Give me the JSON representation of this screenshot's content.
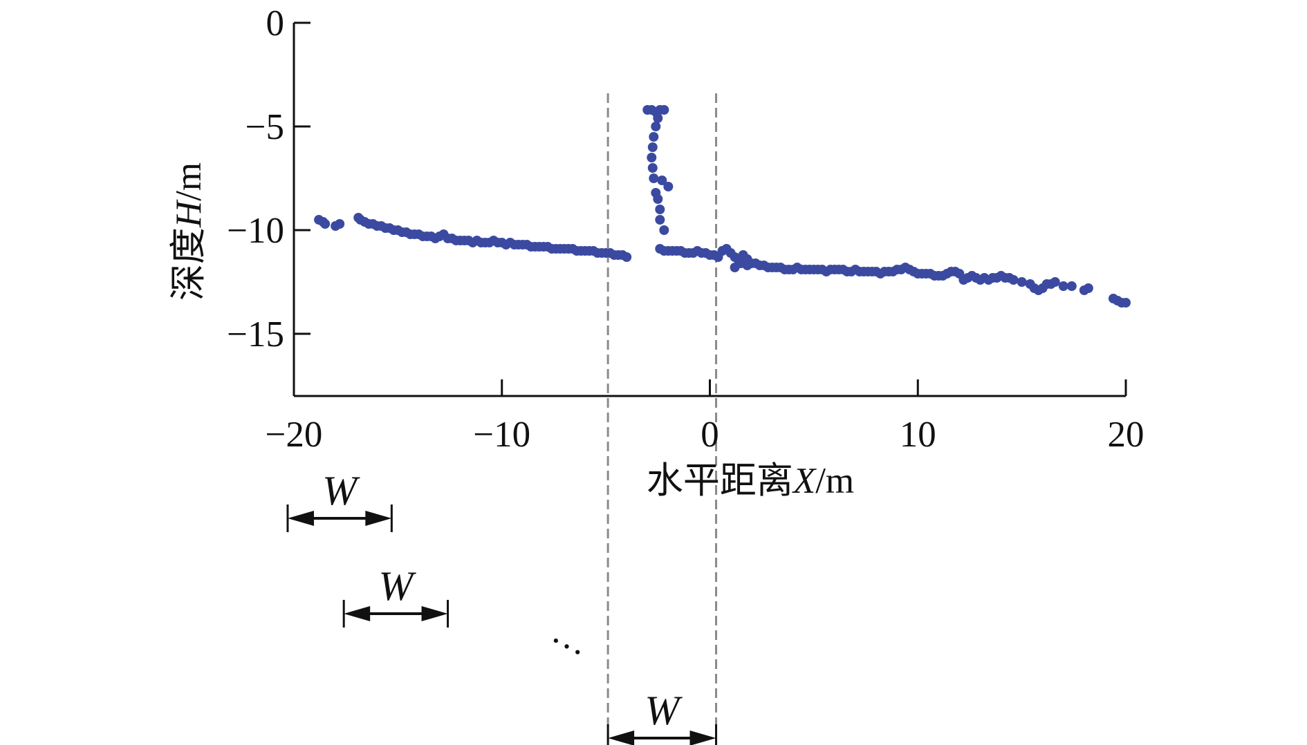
{
  "colors": {
    "points": "#3b4aa0",
    "axis": "#111111",
    "guide": "#8a8a8a"
  },
  "chart_data": {
    "type": "scatter",
    "title": "",
    "xlabel": {
      "prefix": "水平距离",
      "var": "X",
      "unit": "/m"
    },
    "ylabel": {
      "prefix": "深度",
      "var": "H",
      "unit": "/m"
    },
    "xlim": [
      -20,
      20
    ],
    "ylim": [
      -18,
      0
    ],
    "xticks": [
      -20,
      -10,
      0,
      10,
      20
    ],
    "yticks": [
      0,
      -5,
      -10,
      -15
    ],
    "xtick_labels": [
      "−20",
      "−10",
      "0",
      "10",
      "20"
    ],
    "ytick_labels": [
      "0",
      "−5",
      "−10",
      "−15"
    ],
    "grid": false,
    "legend": "none",
    "points": [
      [
        -18.8,
        -9.5
      ],
      [
        -18.6,
        -9.6
      ],
      [
        -18.5,
        -9.7
      ],
      [
        -18.0,
        -9.8
      ],
      [
        -17.8,
        -9.7
      ],
      [
        -16.9,
        -9.4
      ],
      [
        -16.8,
        -9.5
      ],
      [
        -16.6,
        -9.6
      ],
      [
        -16.4,
        -9.7
      ],
      [
        -16.2,
        -9.7
      ],
      [
        -16.0,
        -9.8
      ],
      [
        -15.8,
        -9.8
      ],
      [
        -15.6,
        -9.9
      ],
      [
        -15.4,
        -9.9
      ],
      [
        -15.2,
        -10.0
      ],
      [
        -15.0,
        -10.0
      ],
      [
        -14.8,
        -10.1
      ],
      [
        -14.6,
        -10.1
      ],
      [
        -14.4,
        -10.2
      ],
      [
        -14.2,
        -10.2
      ],
      [
        -14.0,
        -10.2
      ],
      [
        -13.8,
        -10.3
      ],
      [
        -13.6,
        -10.3
      ],
      [
        -13.4,
        -10.3
      ],
      [
        -13.2,
        -10.4
      ],
      [
        -13.0,
        -10.3
      ],
      [
        -12.8,
        -10.2
      ],
      [
        -12.6,
        -10.4
      ],
      [
        -12.4,
        -10.4
      ],
      [
        -12.2,
        -10.5
      ],
      [
        -12.0,
        -10.5
      ],
      [
        -11.8,
        -10.5
      ],
      [
        -11.6,
        -10.5
      ],
      [
        -11.4,
        -10.6
      ],
      [
        -11.2,
        -10.5
      ],
      [
        -11.0,
        -10.6
      ],
      [
        -10.8,
        -10.6
      ],
      [
        -10.6,
        -10.6
      ],
      [
        -10.4,
        -10.5
      ],
      [
        -10.2,
        -10.6
      ],
      [
        -10.0,
        -10.6
      ],
      [
        -9.8,
        -10.7
      ],
      [
        -9.6,
        -10.6
      ],
      [
        -9.4,
        -10.7
      ],
      [
        -9.2,
        -10.7
      ],
      [
        -9.0,
        -10.7
      ],
      [
        -8.8,
        -10.7
      ],
      [
        -8.6,
        -10.8
      ],
      [
        -8.4,
        -10.8
      ],
      [
        -8.2,
        -10.8
      ],
      [
        -8.0,
        -10.8
      ],
      [
        -7.8,
        -10.8
      ],
      [
        -7.6,
        -10.9
      ],
      [
        -7.4,
        -10.9
      ],
      [
        -7.2,
        -10.9
      ],
      [
        -7.0,
        -10.9
      ],
      [
        -6.8,
        -10.9
      ],
      [
        -6.6,
        -10.9
      ],
      [
        -6.4,
        -11.0
      ],
      [
        -6.2,
        -11.0
      ],
      [
        -6.0,
        -11.0
      ],
      [
        -5.8,
        -11.0
      ],
      [
        -5.6,
        -11.0
      ],
      [
        -5.4,
        -11.1
      ],
      [
        -5.2,
        -11.1
      ],
      [
        -5.0,
        -11.1
      ],
      [
        -4.8,
        -11.1
      ],
      [
        -4.6,
        -11.2
      ],
      [
        -4.4,
        -11.2
      ],
      [
        -4.2,
        -11.2
      ],
      [
        -4.0,
        -11.3
      ],
      [
        -3.0,
        -4.2
      ],
      [
        -2.8,
        -4.2
      ],
      [
        -2.6,
        -4.3
      ],
      [
        -2.4,
        -4.2
      ],
      [
        -2.2,
        -4.2
      ],
      [
        -2.5,
        -4.6
      ],
      [
        -2.6,
        -5.0
      ],
      [
        -2.7,
        -5.5
      ],
      [
        -2.75,
        -6.0
      ],
      [
        -2.8,
        -6.5
      ],
      [
        -2.75,
        -7.0
      ],
      [
        -2.7,
        -7.5
      ],
      [
        -2.3,
        -7.6
      ],
      [
        -2.0,
        -7.9
      ],
      [
        -2.6,
        -8.2
      ],
      [
        -2.5,
        -8.5
      ],
      [
        -2.4,
        -9.0
      ],
      [
        -2.4,
        -9.5
      ],
      [
        -2.2,
        -10.0
      ],
      [
        -2.4,
        -10.9
      ],
      [
        -2.2,
        -11.0
      ],
      [
        -2.0,
        -11.0
      ],
      [
        -1.8,
        -11.0
      ],
      [
        -1.6,
        -11.0
      ],
      [
        -1.4,
        -11.0
      ],
      [
        -1.2,
        -11.1
      ],
      [
        -1.0,
        -11.1
      ],
      [
        -0.8,
        -11.1
      ],
      [
        -0.6,
        -11.0
      ],
      [
        -0.4,
        -11.1
      ],
      [
        -0.2,
        -11.1
      ],
      [
        0.0,
        -11.2
      ],
      [
        0.2,
        -11.2
      ],
      [
        0.4,
        -11.3
      ],
      [
        0.6,
        -11.0
      ],
      [
        0.8,
        -10.9
      ],
      [
        1.0,
        -11.1
      ],
      [
        1.2,
        -11.3
      ],
      [
        1.4,
        -11.5
      ],
      [
        1.2,
        -11.8
      ],
      [
        1.5,
        -11.6
      ],
      [
        1.6,
        -11.2
      ],
      [
        1.8,
        -11.4
      ],
      [
        1.8,
        -11.7
      ],
      [
        2.0,
        -11.6
      ],
      [
        2.2,
        -11.6
      ],
      [
        2.4,
        -11.7
      ],
      [
        2.6,
        -11.7
      ],
      [
        2.8,
        -11.8
      ],
      [
        3.0,
        -11.8
      ],
      [
        3.2,
        -11.8
      ],
      [
        3.4,
        -11.8
      ],
      [
        3.6,
        -11.9
      ],
      [
        3.8,
        -11.9
      ],
      [
        4.0,
        -11.9
      ],
      [
        4.2,
        -11.8
      ],
      [
        4.4,
        -11.9
      ],
      [
        4.6,
        -11.9
      ],
      [
        4.8,
        -11.9
      ],
      [
        5.0,
        -11.9
      ],
      [
        5.2,
        -11.9
      ],
      [
        5.4,
        -11.9
      ],
      [
        5.6,
        -12.0
      ],
      [
        5.8,
        -11.9
      ],
      [
        6.0,
        -11.9
      ],
      [
        6.2,
        -11.9
      ],
      [
        6.4,
        -11.9
      ],
      [
        6.6,
        -12.0
      ],
      [
        6.8,
        -12.0
      ],
      [
        7.0,
        -11.9
      ],
      [
        7.2,
        -12.0
      ],
      [
        7.4,
        -12.0
      ],
      [
        7.6,
        -12.0
      ],
      [
        7.8,
        -12.0
      ],
      [
        8.0,
        -12.0
      ],
      [
        8.2,
        -12.1
      ],
      [
        8.4,
        -12.0
      ],
      [
        8.6,
        -12.0
      ],
      [
        8.8,
        -12.0
      ],
      [
        9.0,
        -11.9
      ],
      [
        9.2,
        -11.9
      ],
      [
        9.4,
        -11.8
      ],
      [
        9.6,
        -11.9
      ],
      [
        9.8,
        -12.0
      ],
      [
        10.0,
        -12.1
      ],
      [
        10.2,
        -12.1
      ],
      [
        10.4,
        -12.1
      ],
      [
        10.6,
        -12.1
      ],
      [
        10.8,
        -12.2
      ],
      [
        11.0,
        -12.2
      ],
      [
        11.2,
        -12.2
      ],
      [
        11.4,
        -12.1
      ],
      [
        11.6,
        -12.0
      ],
      [
        11.8,
        -12.0
      ],
      [
        12.0,
        -12.1
      ],
      [
        12.2,
        -12.4
      ],
      [
        12.4,
        -12.3
      ],
      [
        12.6,
        -12.2
      ],
      [
        12.8,
        -12.3
      ],
      [
        13.0,
        -12.4
      ],
      [
        13.2,
        -12.3
      ],
      [
        13.4,
        -12.4
      ],
      [
        13.6,
        -12.3
      ],
      [
        13.8,
        -12.3
      ],
      [
        14.0,
        -12.2
      ],
      [
        14.2,
        -12.3
      ],
      [
        14.4,
        -12.3
      ],
      [
        14.6,
        -12.4
      ],
      [
        15.0,
        -12.5
      ],
      [
        15.4,
        -12.6
      ],
      [
        15.6,
        -12.8
      ],
      [
        15.8,
        -12.9
      ],
      [
        16.0,
        -12.8
      ],
      [
        16.2,
        -12.6
      ],
      [
        16.4,
        -12.6
      ],
      [
        16.6,
        -12.5
      ],
      [
        17.0,
        -12.7
      ],
      [
        17.4,
        -12.7
      ],
      [
        18.0,
        -12.9
      ],
      [
        18.2,
        -12.8
      ],
      [
        19.4,
        -13.3
      ],
      [
        19.6,
        -13.4
      ],
      [
        19.8,
        -13.5
      ],
      [
        20.0,
        -13.5
      ]
    ]
  },
  "annotations": {
    "window_label": "W",
    "ellipsis": "…",
    "windows": [
      {
        "x_start": -20.3,
        "x_end": -15.3,
        "row": 1
      },
      {
        "x_start": -17.6,
        "x_end": -12.6,
        "row": 2
      },
      {
        "x_start": -4.9,
        "x_end": 0.3,
        "row": 3
      }
    ],
    "guide_lines_x": [
      -4.9,
      0.3
    ]
  }
}
